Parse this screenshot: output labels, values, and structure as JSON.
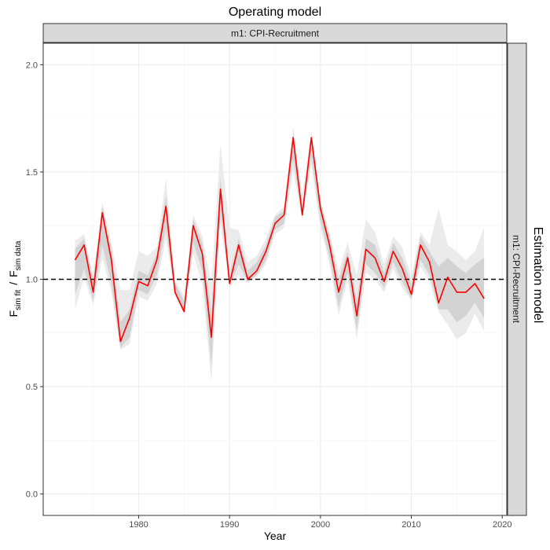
{
  "chart_data": {
    "type": "line",
    "title": "Operating model",
    "facet_top": "m1: CPI-Recruitment",
    "facet_right": "m1: CPI-Recruitment",
    "right_label": "Estimation model",
    "xlabel": "Year",
    "ylabel": {
      "main1": "F",
      "sub1": "sim fit",
      "sep": "/",
      "main2": "F",
      "sub2": "sim data"
    },
    "xlim": [
      1969.5,
      2020.5
    ],
    "ylim": [
      -0.1,
      2.1
    ],
    "x_ticks": [
      1980,
      1990,
      2000,
      2010,
      2020
    ],
    "y_ticks": [
      0.0,
      0.5,
      1.0,
      1.5,
      2.0
    ],
    "y_tick_labels": [
      "0.0",
      "0.5",
      "1.0",
      "1.5",
      "2.0"
    ],
    "grid": true,
    "reference_line": {
      "y": 1.0,
      "style": "dashed",
      "color": "#000000"
    },
    "line_color": "#ff0000",
    "ribbon_outer_color": "#ebebeb",
    "ribbon_inner_color": "#d3d3d3",
    "x": [
      1973,
      1974,
      1975,
      1976,
      1977,
      1978,
      1979,
      1980,
      1981,
      1982,
      1983,
      1984,
      1985,
      1986,
      1987,
      1988,
      1989,
      1990,
      1991,
      1992,
      1993,
      1994,
      1995,
      1996,
      1997,
      1998,
      1999,
      2000,
      2001,
      2002,
      2003,
      2004,
      2005,
      2006,
      2007,
      2008,
      2009,
      2010,
      2011,
      2012,
      2013,
      2014,
      2015,
      2016,
      2017,
      2018
    ],
    "series": [
      {
        "values": [
          1.09,
          1.16,
          0.94,
          1.31,
          1.09,
          0.71,
          0.82,
          0.99,
          0.97,
          1.09,
          1.34,
          0.94,
          0.85,
          1.25,
          1.12,
          0.73,
          1.42,
          0.98,
          1.16,
          1.0,
          1.04,
          1.13,
          1.26,
          1.3,
          1.66,
          1.3,
          1.66,
          1.33,
          1.16,
          0.94,
          1.1,
          0.83,
          1.14,
          1.1,
          0.99,
          1.13,
          1.05,
          0.93,
          1.16,
          1.08,
          0.89,
          1.01,
          0.94,
          0.94,
          0.98,
          0.91
        ]
      }
    ],
    "band_outer_lower": [
      0.86,
      1.01,
      0.88,
      1.1,
      0.94,
      0.67,
      0.7,
      0.92,
      0.9,
      0.98,
      1.19,
      0.92,
      0.84,
      1.12,
      0.98,
      0.52,
      1.26,
      0.96,
      1.02,
      0.98,
      1.01,
      1.07,
      1.21,
      1.24,
      1.5,
      1.28,
      1.53,
      1.24,
      1.07,
      0.83,
      1.0,
      0.72,
      1.03,
      1.0,
      0.94,
      1.05,
      0.96,
      0.9,
      1.06,
      0.99,
      0.85,
      0.79,
      0.72,
      0.75,
      0.84,
      0.76
    ],
    "band_inner_lower": [
      0.93,
      1.05,
      0.9,
      1.16,
      0.98,
      0.68,
      0.73,
      0.95,
      0.93,
      1.02,
      1.24,
      0.93,
      0.84,
      1.17,
      1.04,
      0.6,
      1.32,
      0.97,
      1.07,
      0.99,
      1.02,
      1.09,
      1.23,
      1.26,
      1.56,
      1.29,
      1.57,
      1.27,
      1.1,
      0.87,
      1.03,
      0.76,
      1.07,
      1.03,
      0.96,
      1.08,
      0.99,
      0.91,
      1.09,
      1.02,
      0.86,
      0.86,
      0.8,
      0.83,
      0.89,
      0.82
    ],
    "band_inner_upper": [
      1.14,
      1.19,
      1.0,
      1.34,
      1.14,
      0.8,
      0.86,
      1.04,
      1.02,
      1.12,
      1.39,
      0.98,
      0.9,
      1.28,
      1.17,
      0.85,
      1.47,
      1.02,
      1.19,
      1.04,
      1.08,
      1.16,
      1.29,
      1.32,
      1.68,
      1.33,
      1.67,
      1.36,
      1.2,
      1.0,
      1.13,
      0.9,
      1.19,
      1.16,
      1.03,
      1.17,
      1.1,
      0.98,
      1.2,
      1.13,
      1.06,
      1.1,
      1.06,
      1.03,
      1.07,
      1.1
    ],
    "band_outer_upper": [
      1.18,
      1.21,
      1.02,
      1.36,
      1.17,
      0.95,
      0.95,
      1.13,
      1.11,
      1.15,
      1.47,
      1.0,
      0.92,
      1.3,
      1.2,
      0.98,
      1.63,
      1.24,
      1.23,
      1.08,
      1.11,
      1.19,
      1.3,
      1.34,
      1.71,
      1.4,
      1.69,
      1.37,
      1.22,
      1.04,
      1.17,
      1.02,
      1.28,
      1.22,
      1.07,
      1.2,
      1.15,
      1.01,
      1.22,
      1.16,
      1.33,
      1.16,
      1.13,
      1.09,
      1.13,
      1.24
    ]
  }
}
